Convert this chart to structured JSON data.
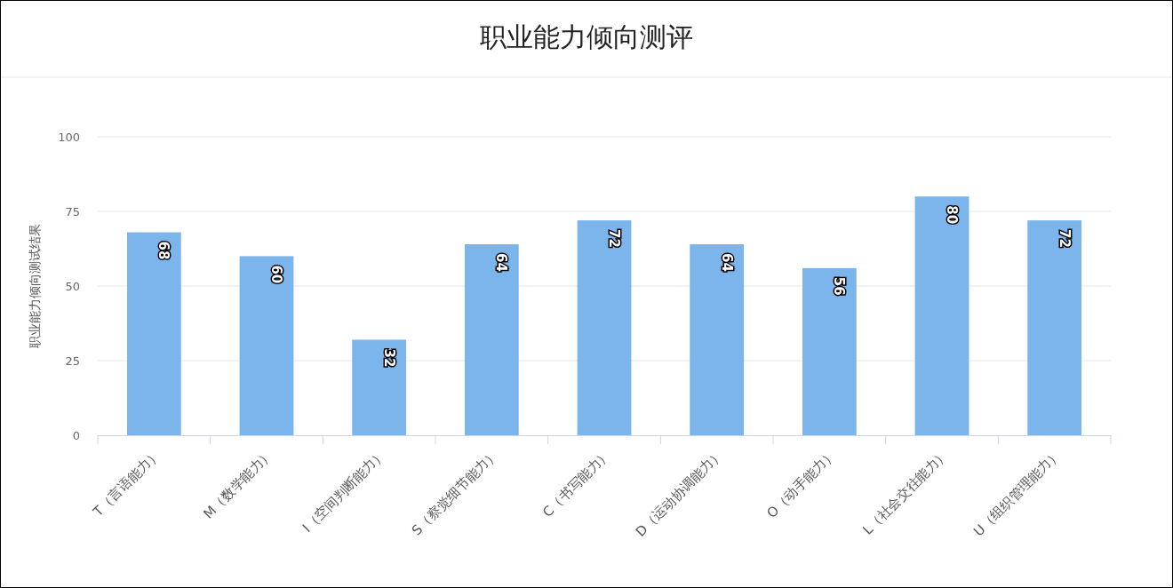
{
  "chart_data": {
    "type": "bar",
    "title": "职业能力倾向测评",
    "ylabel": "职业能力倾向测试结果",
    "categories": [
      "T（言语能力）",
      "M（数学能力）",
      "I（空间判断能力）",
      "S（察觉细节能力）",
      "C（书写能力）",
      "D（运动协调能力）",
      "O（动手能力）",
      "L（社会交往能力）",
      "U（组织管理能力）"
    ],
    "values": [
      68,
      60,
      32,
      64,
      72,
      64,
      56,
      80,
      72
    ],
    "color": "#7cb5ec",
    "ylim": [
      0,
      100
    ],
    "yticks": [
      0,
      25,
      50,
      75,
      100
    ],
    "grid": "y",
    "data_labels": true
  }
}
